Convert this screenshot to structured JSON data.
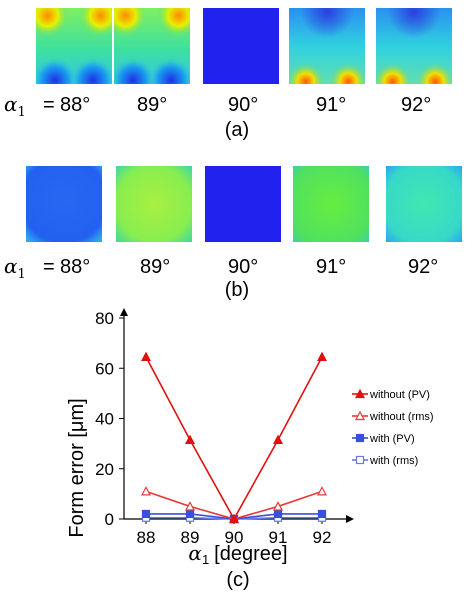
{
  "panel_a": {
    "alpha_symbol": "α",
    "alpha_sub": "1",
    "equals": "=",
    "labels": [
      "88°",
      "89°",
      "90°",
      "91°",
      "92°"
    ],
    "caption": "(a)",
    "maps": [
      "green-blue-corners",
      "green-blue-corners",
      "uniform-blue",
      "cyan-orange-bottom",
      "cyan-orange-bottom"
    ]
  },
  "panel_b": {
    "alpha_symbol": "α",
    "alpha_sub": "1",
    "equals": "=",
    "labels": [
      "88°",
      "89°",
      "90°",
      "91°",
      "92°"
    ],
    "caption": "(b)",
    "maps": [
      "blue-light",
      "yellow-green",
      "uniform-blue",
      "green",
      "cyan"
    ]
  },
  "chart_data": {
    "type": "line",
    "caption": "(c)",
    "xlabel_symbol": "α",
    "xlabel_sub": "1",
    "xlabel_unit": "[degree]",
    "ylabel": "Form error [μm]",
    "x": [
      88,
      89,
      90,
      91,
      92
    ],
    "xlim": [
      87.5,
      92.5
    ],
    "ylim": [
      0,
      80
    ],
    "xticks": [
      "88",
      "89",
      "90",
      "91",
      "92"
    ],
    "yticks": [
      "0",
      "20",
      "40",
      "60",
      "80"
    ],
    "grid": false,
    "legend": "right",
    "series": [
      {
        "name": "without (PV)",
        "values": [
          64.5,
          31.5,
          0,
          31.5,
          64.5
        ],
        "color": "#e01010",
        "marker": "filled-triangle"
      },
      {
        "name": "without (rms)",
        "values": [
          11,
          5,
          0,
          5,
          11
        ],
        "color": "#e83a3a",
        "marker": "open-triangle"
      },
      {
        "name": "with (PV)",
        "values": [
          2,
          2,
          0,
          2,
          2
        ],
        "color": "#3b4ee0",
        "marker": "filled-square"
      },
      {
        "name": "with (rms)",
        "values": [
          0.5,
          0.5,
          0,
          0.5,
          0.5
        ],
        "color": "#6a78e6",
        "marker": "open-square"
      }
    ]
  }
}
